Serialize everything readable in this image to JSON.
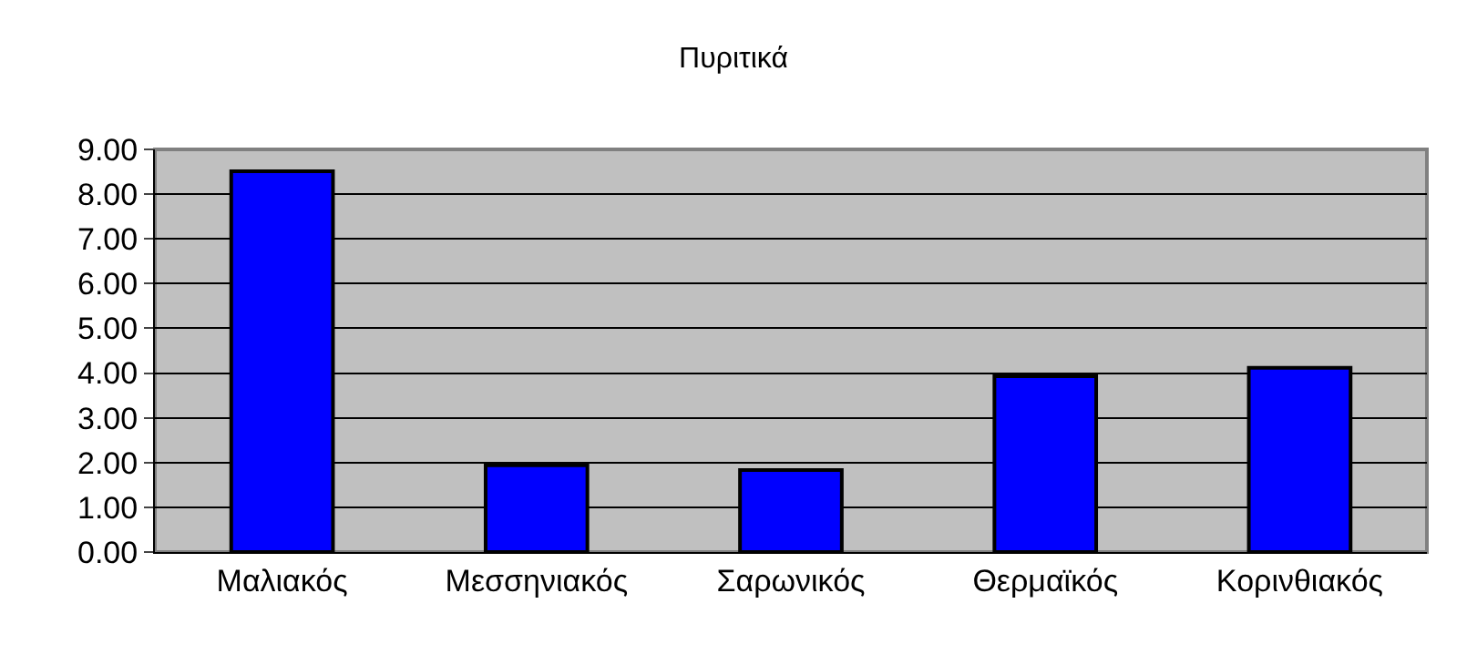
{
  "chart_data": {
    "type": "bar",
    "title": "Πυριτικά",
    "categories": [
      "Μαλιακός",
      "Μεσσηνιακός",
      "Σαρωνικός",
      "Θερμαϊκός",
      "Κορινθιακός"
    ],
    "values": [
      8.51,
      1.94,
      1.83,
      3.93,
      4.12
    ],
    "color": "#0000ff",
    "ylim": [
      0,
      9
    ],
    "yticks": [
      {
        "value": 0,
        "label": "0.00"
      },
      {
        "value": 1,
        "label": "1.00"
      },
      {
        "value": 2,
        "label": "2.00"
      },
      {
        "value": 3,
        "label": "3.00"
      },
      {
        "value": 4,
        "label": "4.00"
      },
      {
        "value": 5,
        "label": "5.00"
      },
      {
        "value": 6,
        "label": "6.00"
      },
      {
        "value": 7,
        "label": "7.00"
      },
      {
        "value": 8,
        "label": "8.00"
      },
      {
        "value": 9,
        "label": "9.00"
      }
    ],
    "grid": "y",
    "legend": false
  }
}
